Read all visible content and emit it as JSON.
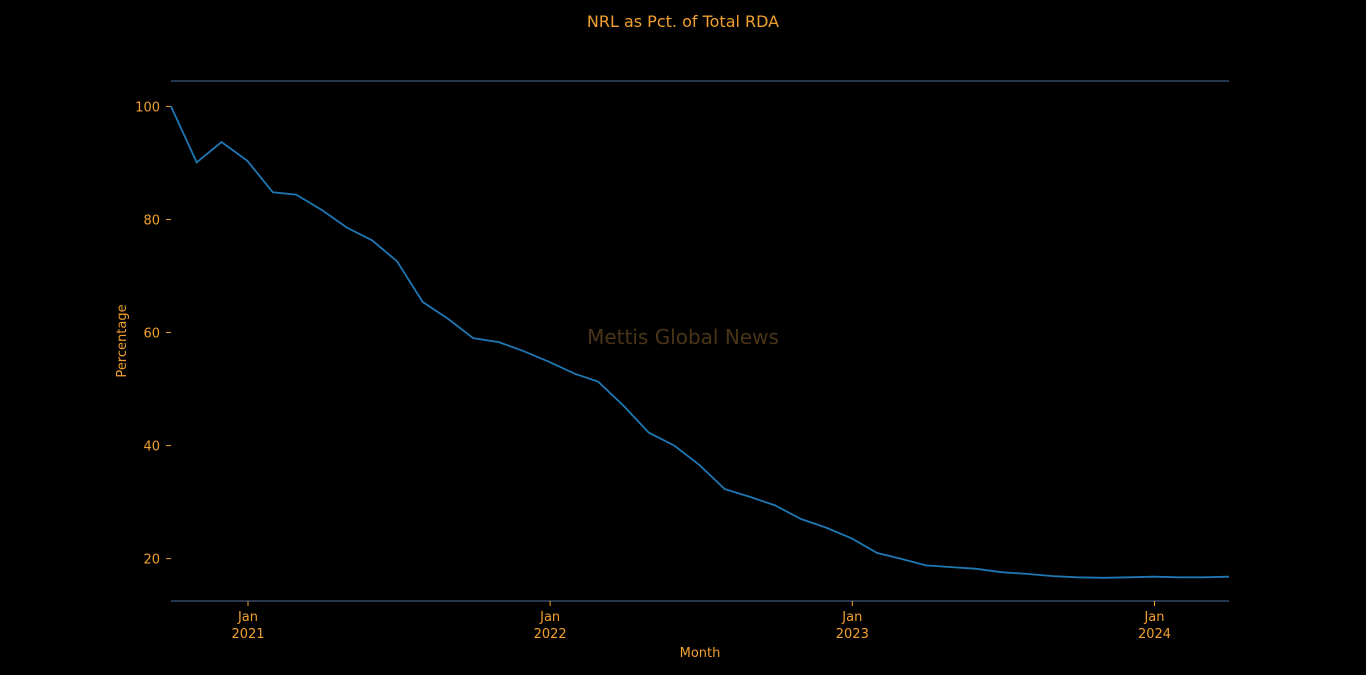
{
  "colors": {
    "background": "#000000",
    "text": "#f0a030",
    "line": "#1f77b4",
    "spine": "#4c6e9e",
    "watermark": "#4a3418"
  },
  "chart_data": {
    "type": "line",
    "title": "NRL as Pct. of Total RDA",
    "xlabel": "Month",
    "ylabel": "Percentage",
    "watermark": "Mettis Global News",
    "grid": false,
    "ylim": [
      12.5,
      104.5
    ],
    "xlim": [
      "2020-09-30",
      "2024-03-31"
    ],
    "yticks": [
      20,
      40,
      60,
      80,
      100
    ],
    "xticks": [
      {
        "date": "2021-01-01",
        "month": "Jan",
        "year": "2021"
      },
      {
        "date": "2022-01-01",
        "month": "Jan",
        "year": "2022"
      },
      {
        "date": "2023-01-01",
        "month": "Jan",
        "year": "2023"
      },
      {
        "date": "2024-01-01",
        "month": "Jan",
        "year": "2024"
      }
    ],
    "x": [
      "2020-09-30",
      "2020-10-31",
      "2020-11-30",
      "2020-12-31",
      "2021-01-31",
      "2021-02-28",
      "2021-03-31",
      "2021-04-30",
      "2021-05-31",
      "2021-06-30",
      "2021-07-31",
      "2021-08-31",
      "2021-09-30",
      "2021-10-31",
      "2021-11-30",
      "2021-12-31",
      "2022-01-31",
      "2022-02-28",
      "2022-03-31",
      "2022-04-30",
      "2022-05-31",
      "2022-06-30",
      "2022-07-31",
      "2022-08-31",
      "2022-09-30",
      "2022-10-31",
      "2022-11-30",
      "2022-12-31",
      "2023-01-31",
      "2023-02-28",
      "2023-03-31",
      "2023-04-30",
      "2023-05-31",
      "2023-06-30",
      "2023-07-31",
      "2023-08-31",
      "2023-09-30",
      "2023-10-31",
      "2023-11-30",
      "2023-12-31",
      "2024-01-31",
      "2024-02-29",
      "2024-03-31"
    ],
    "series": [
      {
        "values": [
          100.0,
          90.1,
          93.7,
          90.4,
          84.8,
          84.4,
          81.7,
          78.6,
          76.3,
          72.6,
          65.4,
          62.4,
          59.0,
          58.3,
          56.7,
          54.8,
          52.7,
          51.3,
          47.0,
          42.3,
          40.0,
          36.6,
          32.3,
          30.9,
          29.4,
          27.0,
          25.5,
          23.6,
          21.0,
          20.0,
          18.8,
          18.5,
          18.2,
          17.6,
          17.3,
          16.9,
          16.7,
          16.6,
          16.7,
          16.8,
          16.7,
          16.7,
          16.8
        ]
      }
    ]
  }
}
